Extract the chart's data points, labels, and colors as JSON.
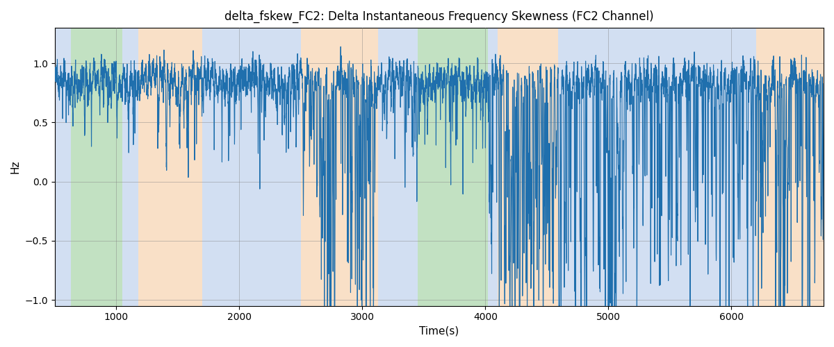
{
  "title": "delta_fskew_FC2: Delta Instantaneous Frequency Skewness (FC2 Channel)",
  "xlabel": "Time(s)",
  "ylabel": "Hz",
  "xlim": [
    500,
    6750
  ],
  "ylim": [
    -1.05,
    1.3
  ],
  "yticks": [
    -1.0,
    -0.5,
    0.0,
    0.5,
    1.0
  ],
  "xticks": [
    1000,
    2000,
    3000,
    4000,
    5000,
    6000
  ],
  "line_color": "#1f6fad",
  "line_width": 0.8,
  "bg_color": "white",
  "bands": [
    {
      "xmin": 500,
      "xmax": 630,
      "color": "#aec6e8",
      "alpha": 0.55
    },
    {
      "xmin": 630,
      "xmax": 1050,
      "color": "#90c990",
      "alpha": 0.55
    },
    {
      "xmin": 1050,
      "xmax": 1180,
      "color": "#aec6e8",
      "alpha": 0.55
    },
    {
      "xmin": 1180,
      "xmax": 1700,
      "color": "#f5c89a",
      "alpha": 0.55
    },
    {
      "xmin": 1700,
      "xmax": 2500,
      "color": "#aec6e8",
      "alpha": 0.55
    },
    {
      "xmin": 2500,
      "xmax": 2650,
      "color": "#f5c89a",
      "alpha": 0.55
    },
    {
      "xmin": 2650,
      "xmax": 3130,
      "color": "#f5c89a",
      "alpha": 0.55
    },
    {
      "xmin": 3130,
      "xmax": 3450,
      "color": "#aec6e8",
      "alpha": 0.55
    },
    {
      "xmin": 3450,
      "xmax": 4020,
      "color": "#90c990",
      "alpha": 0.55
    },
    {
      "xmin": 4020,
      "xmax": 4100,
      "color": "#aec6e8",
      "alpha": 0.55
    },
    {
      "xmin": 4100,
      "xmax": 4590,
      "color": "#f5c89a",
      "alpha": 0.55
    },
    {
      "xmin": 4590,
      "xmax": 6200,
      "color": "#aec6e8",
      "alpha": 0.55
    },
    {
      "xmin": 6200,
      "xmax": 6750,
      "color": "#f5c89a",
      "alpha": 0.55
    }
  ],
  "seed": 42,
  "figsize": [
    12.0,
    5.0
  ],
  "dpi": 100
}
